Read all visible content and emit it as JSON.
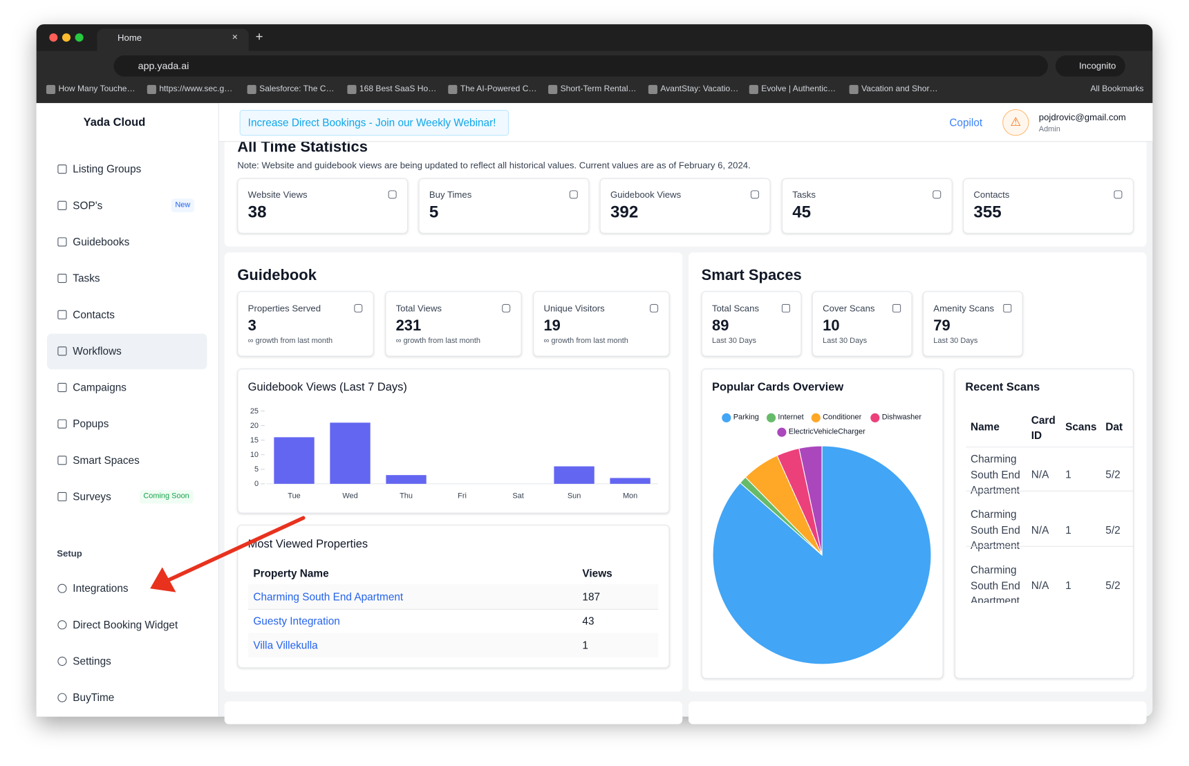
{
  "browser": {
    "tab_title": "Home",
    "url": "app.yada.ai",
    "incognito": "Incognito",
    "all_bookmarks": "All Bookmarks",
    "bookmarks": [
      "How Many Touche…",
      "https://www.sec.g…",
      "Salesforce: The C…",
      "168 Best SaaS Ho…",
      "The AI-Powered C…",
      "Short-Term Rental…",
      "AvantStay: Vacatio…",
      "Evolve | Authentic…",
      "Vacation and Shor…"
    ]
  },
  "sidebar": {
    "brand": "Yada Cloud",
    "items": [
      {
        "label": "Listing Groups"
      },
      {
        "label": "SOP's",
        "badge": "New"
      },
      {
        "label": "Guidebooks"
      },
      {
        "label": "Tasks"
      },
      {
        "label": "Contacts"
      },
      {
        "label": "Workflows"
      },
      {
        "label": "Campaigns"
      },
      {
        "label": "Popups"
      },
      {
        "label": "Smart Spaces"
      },
      {
        "label": "Surveys",
        "badge": "Coming Soon"
      }
    ],
    "setup_heading": "Setup",
    "setup_items": [
      {
        "label": "Integrations"
      },
      {
        "label": "Direct Booking Widget"
      },
      {
        "label": "Settings"
      },
      {
        "label": "BuyTime"
      }
    ]
  },
  "topbar": {
    "banner": "Increase Direct Bookings - Join our Weekly Webinar!",
    "copilot": "Copilot",
    "email": "pojdrovic@gmail.com",
    "role": "Admin"
  },
  "all_time": {
    "title": "All Time Statistics",
    "note": "Note: Website and guidebook views are being updated to reflect all historical values. Current values are as of February 6, 2024.",
    "stats": [
      {
        "label": "Website Views",
        "value": 38
      },
      {
        "label": "Buy Times",
        "value": 5
      },
      {
        "label": "Guidebook Views",
        "value": 392
      },
      {
        "label": "Tasks",
        "value": 45
      },
      {
        "label": "Contacts",
        "value": 355
      }
    ]
  },
  "guidebook": {
    "title": "Guidebook",
    "stats": [
      {
        "label": "Properties Served",
        "value": 3,
        "sub": "∞ growth from last month"
      },
      {
        "label": "Total Views",
        "value": 231,
        "sub": "∞ growth from last month"
      },
      {
        "label": "Unique Visitors",
        "value": 19,
        "sub": "∞ growth from last month"
      }
    ],
    "chart": {
      "type": "bar",
      "title": "Guidebook Views (Last 7 Days)",
      "categories": [
        "Tue",
        "Wed",
        "Thu",
        "Fri",
        "Sat",
        "Sun",
        "Mon"
      ],
      "values": [
        16,
        21,
        3,
        0,
        0,
        6,
        2
      ],
      "color": "#6366f1",
      "ylim": [
        0,
        25
      ],
      "yticks": [
        0,
        5,
        10,
        15,
        20,
        25
      ]
    },
    "most_viewed": {
      "title": "Most Viewed Properties",
      "columns": [
        "Property Name",
        "Views"
      ],
      "rows": [
        [
          "Charming South End Apartment",
          187
        ],
        [
          "Guesty Integration",
          43
        ],
        [
          "Villa Villekulla",
          1
        ]
      ]
    }
  },
  "smart_spaces": {
    "title": "Smart Spaces",
    "stats": [
      {
        "label": "Total Scans",
        "value": 89,
        "sub": "Last 30 Days"
      },
      {
        "label": "Cover Scans",
        "value": 10,
        "sub": "Last 30 Days"
      },
      {
        "label": "Amenity Scans",
        "value": 79,
        "sub": "Last 30 Days"
      }
    ],
    "pie": {
      "type": "pie",
      "title": "Popular Cards Overview",
      "categories": [
        "Parking",
        "Internet",
        "Conditioner",
        "Dishwasher",
        "ElectricVehicleCharger"
      ],
      "values": [
        77,
        1,
        5,
        3,
        3
      ],
      "colors": [
        "#42a5f5",
        "#66bb6a",
        "#ffa726",
        "#ec407a",
        "#ab47bc"
      ]
    },
    "recent_scans": {
      "title": "Recent Scans",
      "columns": [
        "Name",
        "Card ID",
        "Scans",
        "Dat"
      ],
      "rows": [
        [
          "Charming South End Apartment",
          "N/A",
          1,
          "5/2"
        ],
        [
          "Charming South End Apartment",
          "N/A",
          1,
          "5/2"
        ],
        [
          "Charming South End Apartment",
          "N/A",
          1,
          "5/2"
        ]
      ]
    }
  }
}
